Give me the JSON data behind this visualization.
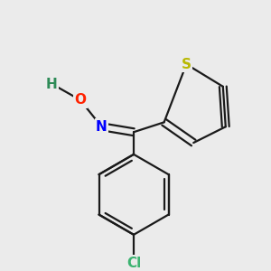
{
  "background_color": "#ebebeb",
  "bond_color": "#1a1a1a",
  "bond_width": 1.6,
  "atom_labels": {
    "H": {
      "text": "H",
      "color": "#2e8b57",
      "fontsize": 11
    },
    "O": {
      "text": "O",
      "color": "#ff2200",
      "fontsize": 11
    },
    "N": {
      "text": "N",
      "color": "#0000ff",
      "fontsize": 11
    },
    "S": {
      "text": "S",
      "color": "#b8b800",
      "fontsize": 11
    },
    "Cl": {
      "text": "Cl",
      "color": "#3cb371",
      "fontsize": 11
    }
  },
  "figsize": [
    3.0,
    3.0
  ],
  "dpi": 100
}
